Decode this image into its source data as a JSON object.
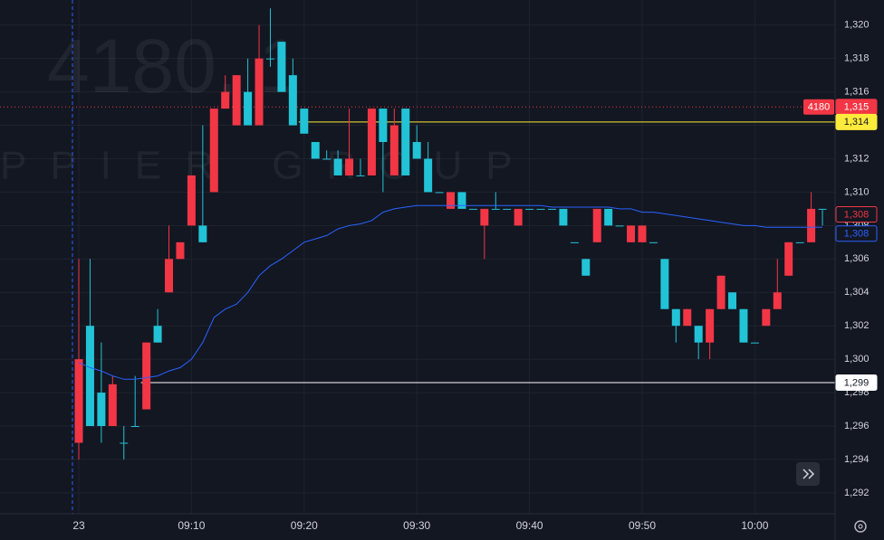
{
  "chart_data": {
    "type": "candlestick",
    "watermark": {
      "symbol": "4180, 1",
      "company": "PPIER GROUP"
    },
    "x": [
      "09:00",
      "09:01",
      "09:02",
      "09:03",
      "09:04",
      "09:05",
      "09:06",
      "09:07",
      "09:08",
      "09:09",
      "09:10",
      "09:11",
      "09:12",
      "09:13",
      "09:14",
      "09:15",
      "09:16",
      "09:17",
      "09:18",
      "09:19",
      "09:20",
      "09:21",
      "09:22",
      "09:23",
      "09:24",
      "09:25",
      "09:26",
      "09:27",
      "09:28",
      "09:29",
      "09:30",
      "09:31",
      "09:32",
      "09:33",
      "09:34",
      "09:35",
      "09:36",
      "09:37",
      "09:38",
      "09:39",
      "09:40",
      "09:41",
      "09:42",
      "09:43",
      "09:44",
      "09:45",
      "09:46",
      "09:47",
      "09:48",
      "09:49",
      "09:50",
      "09:51",
      "09:52",
      "09:53",
      "09:54",
      "09:55",
      "09:56",
      "09:57",
      "09:58",
      "09:59",
      "10:00",
      "10:01",
      "10:02",
      "10:03",
      "10:04",
      "10:05",
      "10:06"
    ],
    "open": [
      1300,
      1296,
      1296,
      1298.5,
      1295,
      1296,
      1301,
      1301,
      1306,
      1307,
      1311,
      1307,
      1315,
      1316,
      1317,
      1314,
      1318,
      1318,
      1316,
      1314,
      1313.5,
      1312,
      1312,
      1311,
      1312,
      1311,
      1315,
      1313,
      1314,
      1311,
      1312,
      1310,
      1310,
      1310,
      1309,
      1309,
      1309,
      1309,
      1309,
      1309,
      1309,
      1309,
      1309,
      1308,
      1307,
      1305,
      1309,
      1308,
      1308,
      1308,
      1308,
      1307,
      1303,
      1302,
      1303,
      1301,
      1303,
      1305,
      1303,
      1301,
      1301,
      1303,
      1304,
      1307,
      1307,
      1309,
      1309
    ],
    "high": [
      1306,
      1306,
      1301,
      1299,
      1296,
      1299,
      1301,
      1303,
      1308,
      1307,
      1311,
      1314,
      1315,
      1317,
      1317,
      1318,
      1320,
      1321,
      1319,
      1318,
      1315,
      1313,
      1312.5,
      1312.5,
      1315,
      1312,
      1315,
      1315,
      1315,
      1315,
      1314,
      1313,
      1310,
      1310,
      1310,
      1309,
      1309,
      1310,
      1309,
      1309,
      1309,
      1309,
      1309,
      1309,
      1307,
      1306,
      1309,
      1309,
      1308,
      1308,
      1308,
      1307,
      1306,
      1303,
      1303,
      1302,
      1303,
      1305,
      1304,
      1303,
      1301,
      1303,
      1306,
      1307,
      1307,
      1310,
      1309
    ],
    "low": [
      1294,
      1296,
      1295,
      1296,
      1294,
      1296,
      1297,
      1301,
      1304,
      1306,
      1308,
      1307,
      1310,
      1315,
      1314,
      1314,
      1314,
      1317.5,
      1316,
      1314,
      1313.5,
      1312,
      1312,
      1311,
      1311,
      1311,
      1311,
      1310,
      1311,
      1311,
      1312,
      1310,
      1310,
      1309,
      1309,
      1309,
      1306,
      1309,
      1309,
      1308,
      1309,
      1309,
      1309,
      1308,
      1307,
      1305,
      1307,
      1308,
      1308,
      1307,
      1307,
      1307,
      1303,
      1301,
      1302,
      1300,
      1300,
      1303,
      1303,
      1301,
      1301,
      1302,
      1303,
      1305,
      1307,
      1307,
      1308
    ],
    "close": [
      1295,
      1302,
      1298,
      1296,
      1295,
      1296,
      1297,
      1302,
      1304,
      1306,
      1308,
      1308,
      1310,
      1315,
      1314,
      1316,
      1314,
      1318,
      1319,
      1317,
      1315,
      1313,
      1312,
      1312,
      1311,
      1311,
      1311,
      1315,
      1311,
      1315,
      1313,
      1312,
      1310,
      1309,
      1310,
      1309,
      1308,
      1309,
      1309,
      1308,
      1309,
      1309,
      1309,
      1309,
      1307,
      1306,
      1307,
      1309,
      1308,
      1307,
      1307,
      1307,
      1306,
      1303,
      1302,
      1302,
      1301,
      1303,
      1304,
      1303,
      1301,
      1302,
      1303,
      1305,
      1307,
      1307,
      1309
    ],
    "up_color": "#22c3d6",
    "down_color": "#f23645",
    "ma": {
      "color": "#2962ff",
      "values": [
        1299.8,
        1299.5,
        1299.3,
        1299,
        1298.8,
        1298.8,
        1298.9,
        1299,
        1299.3,
        1299.5,
        1300,
        1301,
        1302.5,
        1303,
        1303.3,
        1304,
        1305,
        1305.6,
        1306,
        1306.5,
        1307,
        1307.2,
        1307.4,
        1307.8,
        1308,
        1308.1,
        1308.3,
        1308.8,
        1309,
        1309.1,
        1309.2,
        1309.2,
        1309.2,
        1309.2,
        1309.2,
        1309.2,
        1309.2,
        1309.2,
        1309.2,
        1309.2,
        1309.2,
        1309.2,
        1309.1,
        1309.1,
        1309.1,
        1309.1,
        1309.1,
        1309.1,
        1309,
        1309,
        1308.8,
        1308.8,
        1308.7,
        1308.6,
        1308.5,
        1308.4,
        1308.3,
        1308.2,
        1308.1,
        1308,
        1308,
        1307.9,
        1307.9,
        1307.9,
        1307.9,
        1307.9,
        1307.9
      ]
    },
    "price_labels": [
      {
        "value": 1315.1,
        "label": "1,315",
        "tag": "4180",
        "color": "#f23645",
        "line": "dotted"
      },
      {
        "value": 1314.2,
        "label": "1,314",
        "color": "#ffeb3b",
        "line": "solid",
        "from": "09:20"
      },
      {
        "value": 1308.4,
        "label": "1,308",
        "color": "#f23645",
        "style": "outline"
      },
      {
        "value": 1307.9,
        "label": "1,308",
        "color": "#2962ff",
        "style": "outline"
      },
      {
        "value": 1298.6,
        "label": "1,299",
        "color": "#ffffff",
        "line": "solid",
        "from": "09:06"
      }
    ],
    "ylim": [
      1290.75,
      1321.5
    ],
    "yticks": [
      {
        "value": 1292,
        "label": "1,292"
      },
      {
        "value": 1294,
        "label": "1,294"
      },
      {
        "value": 1296,
        "label": "1,296"
      },
      {
        "value": 1298,
        "label": "1,298"
      },
      {
        "value": 1300,
        "label": "1,300"
      },
      {
        "value": 1302,
        "label": "1,302"
      },
      {
        "value": 1304,
        "label": "1,304"
      },
      {
        "value": 1306,
        "label": "1,306"
      },
      {
        "value": 1308,
        "label": "1,308"
      },
      {
        "value": 1310,
        "label": "1,310"
      },
      {
        "value": 1312,
        "label": "1,312"
      },
      {
        "value": 1314,
        "label": "1,314"
      },
      {
        "value": 1316,
        "label": "1,316"
      },
      {
        "value": 1318,
        "label": "1,318"
      },
      {
        "value": 1320,
        "label": "1,320"
      }
    ],
    "xticks": [
      {
        "value": "09:00",
        "label": "23"
      },
      "09:10",
      "09:20",
      "09:30",
      "09:40",
      "09:50",
      "10:00"
    ],
    "grid": true
  }
}
